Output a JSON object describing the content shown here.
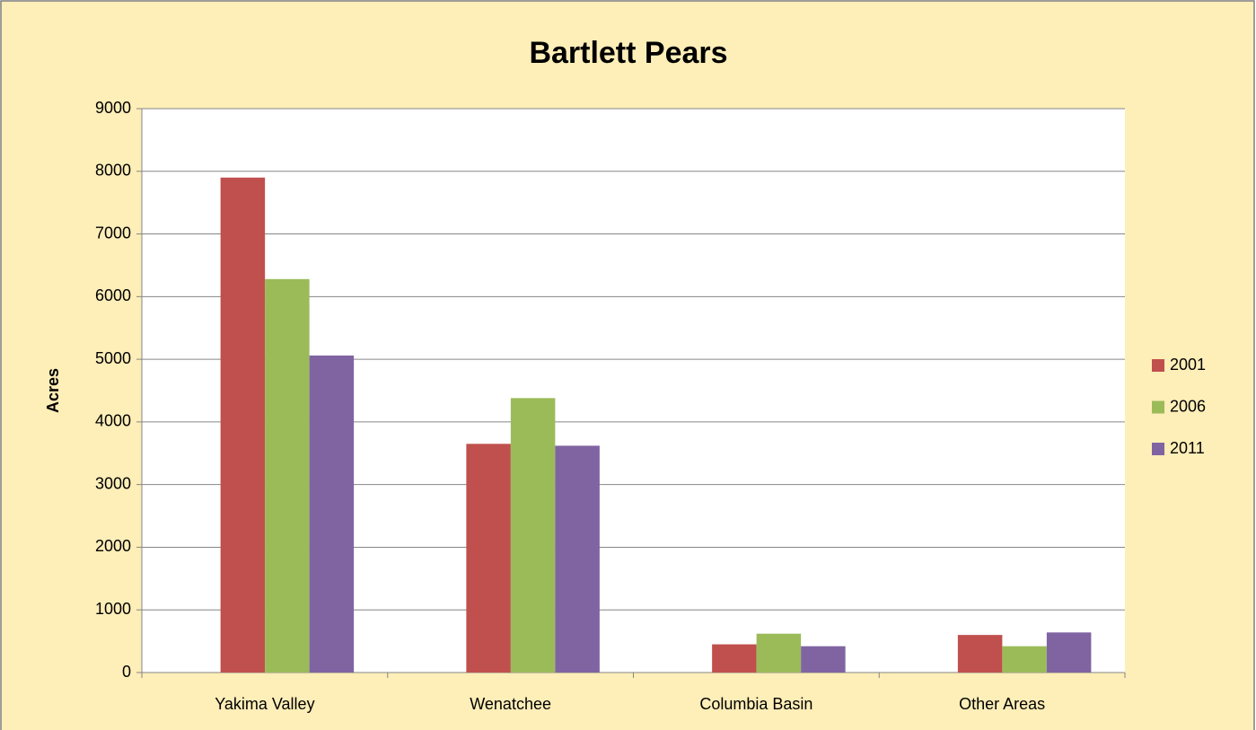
{
  "chart_data": {
    "type": "bar",
    "title": "Bartlett Pears",
    "y_label": "Acres",
    "categories": [
      "Yakima Valley",
      "Wenatchee",
      "Columbia Basin",
      "Other Areas"
    ],
    "series": [
      {
        "name": "2001",
        "color": "#c0504d",
        "values": [
          7900,
          3650,
          450,
          600
        ]
      },
      {
        "name": "2006",
        "color": "#9bbb59",
        "values": [
          6280,
          4380,
          620,
          420
        ]
      },
      {
        "name": "2011",
        "color": "#8064a2",
        "values": [
          5060,
          3620,
          420,
          640
        ]
      }
    ],
    "ylim": [
      0,
      9000
    ],
    "yticks": [
      0,
      1000,
      2000,
      3000,
      4000,
      5000,
      6000,
      7000,
      8000,
      9000
    ],
    "grid": true,
    "legend": "right"
  }
}
